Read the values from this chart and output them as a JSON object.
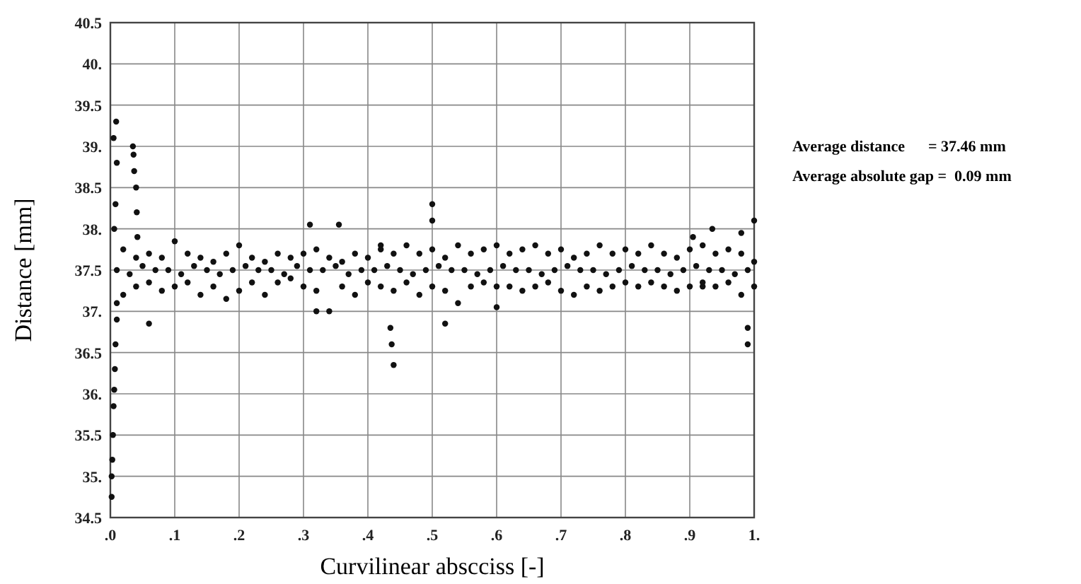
{
  "chart_data": {
    "type": "scatter",
    "xlabel": "Curvilinear abscciss [-]",
    "ylabel": "Distance [mm]",
    "xlim": [
      0,
      1
    ],
    "ylim": [
      34.5,
      40.5
    ],
    "xticks": [
      {
        "value": 0,
        "label": ".0"
      },
      {
        "value": 0.1,
        "label": ".1"
      },
      {
        "value": 0.2,
        "label": ".2"
      },
      {
        "value": 0.3,
        "label": ".3"
      },
      {
        "value": 0.4,
        "label": ".4"
      },
      {
        "value": 0.5,
        "label": ".5"
      },
      {
        "value": 0.6,
        "label": ".6"
      },
      {
        "value": 0.7,
        "label": ".7"
      },
      {
        "value": 0.8,
        "label": ".8"
      },
      {
        "value": 0.9,
        "label": ".9"
      },
      {
        "value": 1,
        "label": "1."
      }
    ],
    "yticks": [
      34.5,
      {
        "value": 35,
        "label": "35."
      },
      35.5,
      {
        "value": 36,
        "label": "36."
      },
      36.5,
      {
        "value": 37,
        "label": "37."
      },
      37.5,
      {
        "value": 38,
        "label": "38."
      },
      38.5,
      {
        "value": 39,
        "label": "39."
      },
      39.5,
      {
        "value": 40,
        "label": "40."
      },
      40.5
    ],
    "grid": true,
    "marker": "circle",
    "annotations": [
      "Average distance      = 37.46 mm",
      "Average absolute gap =  0.09 mm"
    ],
    "series": [
      {
        "color": "#111111",
        "x": [
          0.002,
          0.002,
          0.003,
          0.004,
          0.005,
          0.006,
          0.007,
          0.008,
          0.01,
          0.01,
          0.006,
          0.008,
          0.01,
          0.005,
          0.009,
          0.035,
          0.036,
          0.037,
          0.04,
          0.041,
          0.042,
          0.06,
          0.31,
          0.32,
          0.355,
          0.42,
          0.435,
          0.437,
          0.44,
          0.5,
          0.5,
          0.52,
          0.6,
          0.905,
          0.92,
          0.935,
          0.98,
          0.99,
          0.99,
          1.0,
          1.0,
          1.0
        ],
        "values": [
          34.75,
          35.0,
          35.2,
          35.5,
          35.85,
          36.05,
          36.3,
          36.6,
          36.9,
          37.1,
          38.0,
          38.3,
          38.8,
          39.1,
          39.3,
          39.0,
          38.9,
          38.7,
          38.5,
          38.2,
          37.9,
          36.85,
          38.05,
          37.0,
          38.05,
          37.8,
          36.8,
          36.6,
          36.35,
          38.3,
          38.1,
          36.85,
          37.05,
          37.9,
          37.3,
          38.0,
          37.95,
          36.8,
          36.6,
          38.1,
          37.6,
          37.3
        ]
      },
      {
        "color": "#111111",
        "x": [
          0.02,
          0.04,
          0.06,
          0.08,
          0.1,
          0.12,
          0.14,
          0.16,
          0.18,
          0.2,
          0.22,
          0.24,
          0.26,
          0.28,
          0.3,
          0.32,
          0.34,
          0.36,
          0.38,
          0.4,
          0.42,
          0.44,
          0.46,
          0.48,
          0.5,
          0.52,
          0.54,
          0.56,
          0.58,
          0.6,
          0.62,
          0.64,
          0.66,
          0.68,
          0.7,
          0.72,
          0.74,
          0.76,
          0.78,
          0.8,
          0.82,
          0.84,
          0.86,
          0.88,
          0.9,
          0.92,
          0.94,
          0.96,
          0.98
        ],
        "values": [
          37.75,
          37.65,
          37.7,
          37.65,
          37.85,
          37.7,
          37.65,
          37.6,
          37.7,
          37.8,
          37.65,
          37.6,
          37.7,
          37.65,
          37.7,
          37.75,
          37.65,
          37.6,
          37.7,
          37.65,
          37.75,
          37.7,
          37.8,
          37.7,
          37.75,
          37.65,
          37.8,
          37.7,
          37.75,
          37.8,
          37.7,
          37.75,
          37.8,
          37.7,
          37.75,
          37.65,
          37.7,
          37.8,
          37.7,
          37.75,
          37.7,
          37.8,
          37.7,
          37.65,
          37.75,
          37.8,
          37.7,
          37.75,
          37.7
        ]
      },
      {
        "color": "#111111",
        "x": [
          0.02,
          0.04,
          0.06,
          0.08,
          0.1,
          0.12,
          0.14,
          0.16,
          0.18,
          0.2,
          0.22,
          0.24,
          0.26,
          0.28,
          0.3,
          0.32,
          0.34,
          0.36,
          0.38,
          0.4,
          0.42,
          0.44,
          0.46,
          0.48,
          0.5,
          0.52,
          0.54,
          0.56,
          0.58,
          0.6,
          0.62,
          0.64,
          0.66,
          0.68,
          0.7,
          0.72,
          0.74,
          0.76,
          0.78,
          0.8,
          0.82,
          0.84,
          0.86,
          0.88,
          0.9,
          0.92,
          0.94,
          0.96,
          0.98
        ],
        "values": [
          37.2,
          37.3,
          37.35,
          37.25,
          37.3,
          37.35,
          37.2,
          37.3,
          37.15,
          37.25,
          37.35,
          37.2,
          37.35,
          37.4,
          37.3,
          37.25,
          37.0,
          37.3,
          37.2,
          37.35,
          37.3,
          37.25,
          37.35,
          37.2,
          37.3,
          37.25,
          37.1,
          37.3,
          37.35,
          37.3,
          37.3,
          37.25,
          37.3,
          37.35,
          37.25,
          37.2,
          37.3,
          37.25,
          37.3,
          37.35,
          37.3,
          37.35,
          37.3,
          37.25,
          37.3,
          37.35,
          37.3,
          37.35,
          37.2
        ]
      },
      {
        "color": "#111111",
        "x": [
          0.01,
          0.03,
          0.05,
          0.07,
          0.09,
          0.11,
          0.13,
          0.15,
          0.17,
          0.19,
          0.21,
          0.23,
          0.25,
          0.27,
          0.29,
          0.31,
          0.33,
          0.35,
          0.37,
          0.39,
          0.41,
          0.43,
          0.45,
          0.47,
          0.49,
          0.51,
          0.53,
          0.55,
          0.57,
          0.59,
          0.61,
          0.63,
          0.65,
          0.67,
          0.69,
          0.71,
          0.73,
          0.75,
          0.77,
          0.79,
          0.81,
          0.83,
          0.85,
          0.87,
          0.89,
          0.91,
          0.93,
          0.95,
          0.97,
          0.99
        ],
        "values": [
          37.5,
          37.45,
          37.55,
          37.5,
          37.5,
          37.45,
          37.55,
          37.5,
          37.45,
          37.5,
          37.55,
          37.5,
          37.5,
          37.45,
          37.55,
          37.5,
          37.5,
          37.55,
          37.45,
          37.5,
          37.5,
          37.55,
          37.5,
          37.45,
          37.5,
          37.55,
          37.5,
          37.5,
          37.45,
          37.5,
          37.55,
          37.5,
          37.5,
          37.45,
          37.5,
          37.55,
          37.5,
          37.5,
          37.45,
          37.5,
          37.55,
          37.5,
          37.5,
          37.45,
          37.5,
          37.55,
          37.5,
          37.5,
          37.45,
          37.5
        ]
      }
    ]
  }
}
